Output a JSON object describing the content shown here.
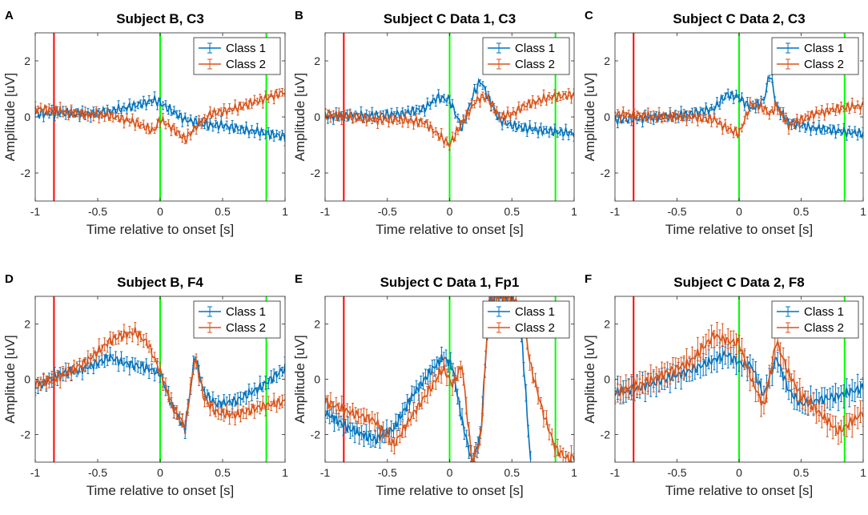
{
  "figure": {
    "series_colors": {
      "class1": "#0072BD",
      "class2": "#D95319"
    },
    "marker_colors": {
      "red": "#FF0000",
      "green": "#00FF00"
    }
  },
  "chart_data": [
    {
      "panel_label": "A",
      "type": "line",
      "title": "Subject B, C3",
      "xlabel": "Time relative to onset [s]",
      "ylabel": "Amplitude [uV]",
      "xlim": [
        -1,
        1
      ],
      "ylim": [
        -3,
        3
      ],
      "xticks": [
        -1,
        -0.5,
        0,
        0.5,
        1
      ],
      "xtick_labels": [
        "-1",
        "-0.5",
        "0",
        "0.5",
        "1"
      ],
      "yticks": [
        -2,
        0,
        2
      ],
      "ytick_labels": [
        "-2",
        "0",
        "2"
      ],
      "vlines": [
        {
          "x": -0.85,
          "color": "red"
        },
        {
          "x": 0,
          "color": "green"
        },
        {
          "x": 0.85,
          "color": "green"
        }
      ],
      "legend": [
        "Class 1",
        "Class 2"
      ],
      "legend_location": "top-right",
      "series": [
        {
          "name": "Class 1",
          "x": [
            -1,
            -0.8,
            -0.6,
            -0.4,
            -0.2,
            -0.05,
            0,
            0.1,
            0.2,
            0.3,
            0.4,
            0.5,
            0.6,
            0.8,
            1
          ],
          "y": [
            0.1,
            0.15,
            0.1,
            0.2,
            0.4,
            0.6,
            0.5,
            0.2,
            -0.1,
            -0.2,
            -0.3,
            -0.3,
            -0.4,
            -0.55,
            -0.7
          ],
          "err": 0.12
        },
        {
          "name": "Class 2",
          "x": [
            -1,
            -0.8,
            -0.6,
            -0.4,
            -0.2,
            -0.05,
            0,
            0.1,
            0.2,
            0.3,
            0.4,
            0.5,
            0.6,
            0.8,
            1
          ],
          "y": [
            0.3,
            0.2,
            0.1,
            0.05,
            -0.2,
            -0.5,
            -0.1,
            -0.4,
            -0.8,
            -0.3,
            0.1,
            0.2,
            0.3,
            0.6,
            0.9
          ],
          "err": 0.12
        }
      ]
    },
    {
      "panel_label": "B",
      "type": "line",
      "title": "Subject C Data 1, C3",
      "xlabel": "Time relative to onset [s]",
      "ylabel": "Amplitude [uV]",
      "xlim": [
        -1,
        1
      ],
      "ylim": [
        -3,
        3
      ],
      "xticks": [
        -1,
        -0.5,
        0,
        0.5,
        1
      ],
      "xtick_labels": [
        "-1",
        "-0.5",
        "0",
        "0.5",
        "1"
      ],
      "yticks": [
        -2,
        0,
        2
      ],
      "ytick_labels": [
        "-2",
        "0",
        "2"
      ],
      "vlines": [
        {
          "x": -0.85,
          "color": "red"
        },
        {
          "x": 0,
          "color": "green"
        },
        {
          "x": 0.85,
          "color": "green"
        }
      ],
      "legend": [
        "Class 1",
        "Class 2"
      ],
      "legend_location": "top-right",
      "series": [
        {
          "name": "Class 1",
          "x": [
            -1,
            -0.8,
            -0.6,
            -0.4,
            -0.2,
            -0.1,
            0,
            0.1,
            0.2,
            0.25,
            0.3,
            0.4,
            0.5,
            0.6,
            0.8,
            1
          ],
          "y": [
            0,
            0.05,
            0.05,
            0.1,
            0.3,
            0.7,
            0.6,
            -0.4,
            0.9,
            1.3,
            0.8,
            -0.1,
            -0.3,
            -0.4,
            -0.5,
            -0.6
          ],
          "err": 0.12
        },
        {
          "name": "Class 2",
          "x": [
            -1,
            -0.8,
            -0.6,
            -0.4,
            -0.2,
            -0.1,
            0,
            0.1,
            0.2,
            0.25,
            0.3,
            0.4,
            0.5,
            0.6,
            0.8,
            1
          ],
          "y": [
            0.1,
            0.0,
            -0.1,
            -0.1,
            -0.2,
            -0.6,
            -1.0,
            -0.2,
            0.5,
            0.7,
            0.7,
            0.0,
            0.1,
            0.4,
            0.7,
            0.8
          ],
          "err": 0.12
        }
      ]
    },
    {
      "panel_label": "C",
      "type": "line",
      "title": "Subject C Data 2, C3",
      "xlabel": "Time relative to onset [s]",
      "ylabel": "Amplitude [uV]",
      "xlim": [
        -1,
        1
      ],
      "ylim": [
        -3,
        3
      ],
      "xticks": [
        -1,
        -0.5,
        0,
        0.5,
        1
      ],
      "xtick_labels": [
        "-1",
        "-0.5",
        "0",
        "0.5",
        "1"
      ],
      "yticks": [
        -2,
        0,
        2
      ],
      "ytick_labels": [
        "-2",
        "0",
        "2"
      ],
      "vlines": [
        {
          "x": -0.85,
          "color": "red"
        },
        {
          "x": 0,
          "color": "green"
        },
        {
          "x": 0.85,
          "color": "green"
        }
      ],
      "legend": [
        "Class 1",
        "Class 2"
      ],
      "legend_location": "top-right",
      "series": [
        {
          "name": "Class 1",
          "x": [
            -1,
            -0.8,
            -0.6,
            -0.4,
            -0.2,
            -0.1,
            0,
            0.1,
            0.2,
            0.25,
            0.3,
            0.4,
            0.5,
            0.6,
            0.8,
            1
          ],
          "y": [
            -0.1,
            -0.05,
            0.0,
            0.1,
            0.3,
            0.8,
            0.7,
            0.3,
            0.6,
            1.6,
            0.4,
            -0.2,
            -0.3,
            -0.4,
            -0.5,
            -0.6
          ],
          "err": 0.12
        },
        {
          "name": "Class 2",
          "x": [
            -1,
            -0.8,
            -0.6,
            -0.4,
            -0.2,
            -0.1,
            0,
            0.1,
            0.2,
            0.25,
            0.3,
            0.4,
            0.5,
            0.6,
            0.8,
            1
          ],
          "y": [
            0.1,
            0.05,
            0.0,
            0.0,
            -0.1,
            -0.4,
            -0.6,
            0.5,
            0.3,
            0.1,
            0.4,
            -0.3,
            -0.1,
            0.1,
            0.3,
            0.4
          ],
          "err": 0.12
        }
      ]
    },
    {
      "panel_label": "D",
      "type": "line",
      "title": "Subject B, F4",
      "xlabel": "Time relative to onset [s]",
      "ylabel": "Amplitude [uV]",
      "xlim": [
        -1,
        1
      ],
      "ylim": [
        -3,
        3
      ],
      "xticks": [
        -1,
        -0.5,
        0,
        0.5,
        1
      ],
      "xtick_labels": [
        "-1",
        "-0.5",
        "0",
        "0.5",
        "1"
      ],
      "yticks": [
        -2,
        0,
        2
      ],
      "ytick_labels": [
        "-2",
        "0",
        "2"
      ],
      "vlines": [
        {
          "x": -0.85,
          "color": "red"
        },
        {
          "x": 0,
          "color": "green"
        },
        {
          "x": 0.85,
          "color": "green"
        }
      ],
      "legend": [
        "Class 1",
        "Class 2"
      ],
      "legend_location": "top-right",
      "series": [
        {
          "name": "Class 1",
          "x": [
            -1,
            -0.8,
            -0.6,
            -0.5,
            -0.4,
            -0.3,
            -0.2,
            -0.1,
            0,
            0.1,
            0.2,
            0.28,
            0.35,
            0.45,
            0.6,
            0.8,
            1
          ],
          "y": [
            -0.3,
            0.2,
            0.4,
            0.6,
            0.8,
            0.6,
            0.5,
            0.4,
            0.2,
            -1.0,
            -1.8,
            0.9,
            -0.5,
            -0.9,
            -0.8,
            -0.3,
            0.4
          ],
          "err": 0.2
        },
        {
          "name": "Class 2",
          "x": [
            -1,
            -0.8,
            -0.6,
            -0.5,
            -0.4,
            -0.3,
            -0.2,
            -0.1,
            0,
            0.1,
            0.2,
            0.28,
            0.35,
            0.45,
            0.6,
            0.8,
            1
          ],
          "y": [
            -0.2,
            0.1,
            0.6,
            1.0,
            1.4,
            1.6,
            1.7,
            1.3,
            0.3,
            -1.0,
            -1.7,
            0.8,
            -0.7,
            -1.2,
            -1.3,
            -1.0,
            -0.8
          ],
          "err": 0.2
        }
      ]
    },
    {
      "panel_label": "E",
      "type": "line",
      "title": "Subject C Data 1, Fp1",
      "xlabel": "Time relative to onset [s]",
      "ylabel": "Amplitude [uV]",
      "xlim": [
        -1,
        1
      ],
      "ylim": [
        -3,
        3
      ],
      "xticks": [
        -1,
        -0.5,
        0,
        0.5,
        1
      ],
      "xtick_labels": [
        "-1",
        "-0.5",
        "0",
        "0.5",
        "1"
      ],
      "yticks": [
        -2,
        0,
        2
      ],
      "ytick_labels": [
        "-2",
        "0",
        "2"
      ],
      "vlines": [
        {
          "x": -0.85,
          "color": "red"
        },
        {
          "x": 0,
          "color": "green"
        },
        {
          "x": 0.85,
          "color": "green"
        }
      ],
      "legend": [
        "Class 1",
        "Class 2"
      ],
      "legend_location": "top-right",
      "series": [
        {
          "name": "Class 1",
          "x": [
            -1,
            -0.8,
            -0.6,
            -0.45,
            -0.3,
            -0.15,
            -0.05,
            0.02,
            0.1,
            0.18,
            0.25,
            0.32,
            0.4,
            0.5,
            0.58,
            0.65
          ],
          "y": [
            -1.2,
            -1.8,
            -2.2,
            -1.8,
            -0.6,
            0.3,
            0.8,
            0.5,
            -1.5,
            -3.0,
            -2.0,
            3.0,
            3.0,
            3.0,
            1.5,
            -3.0
          ],
          "err": 0.25
        },
        {
          "name": "Class 2",
          "x": [
            -1,
            -0.8,
            -0.6,
            -0.45,
            -0.3,
            -0.15,
            -0.05,
            0.02,
            0.1,
            0.18,
            0.25,
            0.32,
            0.4,
            0.5,
            0.58,
            0.65,
            0.75,
            0.85,
            0.95,
            1
          ],
          "y": [
            -0.8,
            -1.2,
            -1.5,
            -2.4,
            -1.3,
            -0.3,
            0.4,
            -0.2,
            0.5,
            -3.0,
            -2.2,
            3.0,
            3.0,
            3.0,
            2.5,
            0.5,
            -1.2,
            -2.5,
            -2.9,
            -2.8
          ],
          "err": 0.25
        }
      ]
    },
    {
      "panel_label": "F",
      "type": "line",
      "title": "Subject C Data 2, F8",
      "xlabel": "Time relative to onset [s]",
      "ylabel": "Amplitude [uV]",
      "xlim": [
        -1,
        1
      ],
      "ylim": [
        -3,
        3
      ],
      "xticks": [
        -1,
        -0.5,
        0,
        0.5,
        1
      ],
      "xtick_labels": [
        "-1",
        "-0.5",
        "0",
        "0.5",
        "1"
      ],
      "yticks": [
        -2,
        0,
        2
      ],
      "ytick_labels": [
        "-2",
        "0",
        "2"
      ],
      "vlines": [
        {
          "x": -0.85,
          "color": "red"
        },
        {
          "x": 0,
          "color": "green"
        },
        {
          "x": 0.85,
          "color": "green"
        }
      ],
      "legend": [
        "Class 1",
        "Class 2"
      ],
      "legend_location": "top-right",
      "series": [
        {
          "name": "Class 1",
          "x": [
            -1,
            -0.8,
            -0.6,
            -0.4,
            -0.2,
            -0.1,
            0,
            0.1,
            0.2,
            0.3,
            0.4,
            0.5,
            0.6,
            0.8,
            1
          ],
          "y": [
            -0.5,
            -0.3,
            0.0,
            0.3,
            0.7,
            0.9,
            0.6,
            0.5,
            -0.6,
            0.8,
            -0.4,
            -0.9,
            -0.8,
            -0.6,
            -0.3
          ],
          "err": 0.35
        },
        {
          "name": "Class 2",
          "x": [
            -1,
            -0.8,
            -0.6,
            -0.4,
            -0.2,
            -0.1,
            0,
            0.1,
            0.2,
            0.3,
            0.4,
            0.5,
            0.6,
            0.8,
            1
          ],
          "y": [
            -0.5,
            -0.2,
            0.2,
            0.6,
            1.6,
            1.4,
            1.3,
            0.0,
            -1.0,
            1.4,
            0.2,
            -0.6,
            -1.0,
            -1.9,
            -1.2
          ],
          "err": 0.35
        }
      ]
    }
  ]
}
